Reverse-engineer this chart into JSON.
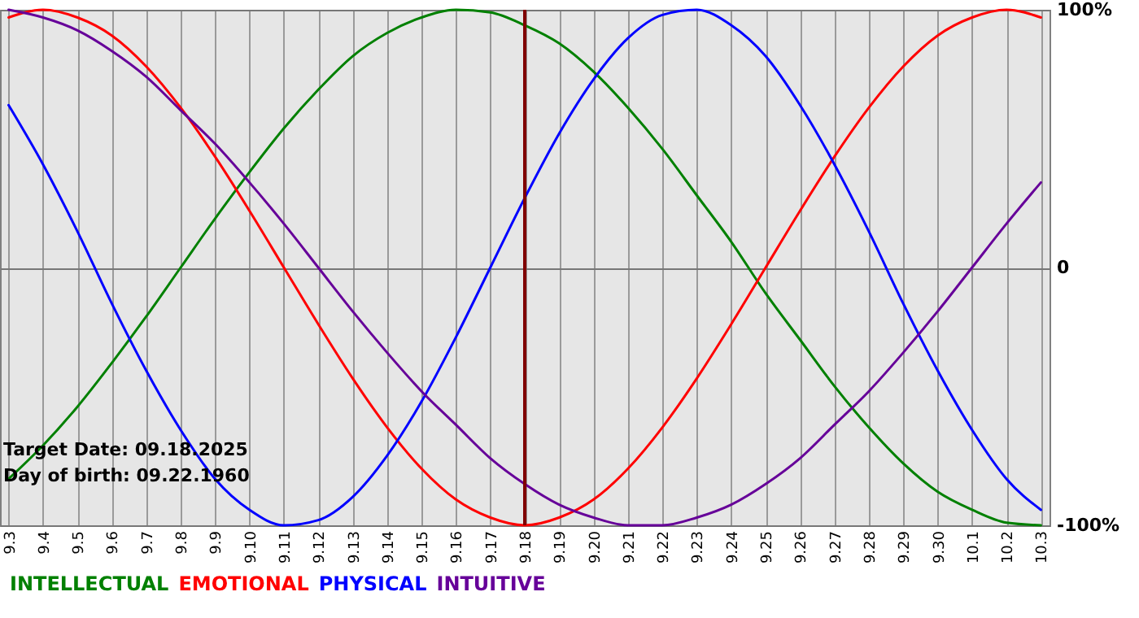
{
  "chart_data": {
    "type": "line",
    "categories": [
      "9.3",
      "9.4",
      "9.5",
      "9.6",
      "9.7",
      "9.8",
      "9.9",
      "9.10",
      "9.11",
      "9.12",
      "9.13",
      "9.14",
      "9.15",
      "9.16",
      "9.17",
      "9.18",
      "9.19",
      "9.20",
      "9.21",
      "9.22",
      "9.23",
      "9.24",
      "9.25",
      "9.26",
      "9.27",
      "9.28",
      "9.29",
      "9.30",
      "10.1",
      "10.2",
      "10.3"
    ],
    "series": [
      {
        "name": "INTELLECTUAL",
        "color": "#008000",
        "values": [
          -82,
          -69,
          -54,
          -37,
          -19,
          0,
          19,
          37,
          54,
          69,
          82,
          91,
          97,
          100,
          99,
          94,
          87,
          76,
          62,
          46,
          28,
          10,
          -10,
          -28,
          -46,
          -62,
          -76,
          -87,
          -94,
          -99,
          -100
        ]
      },
      {
        "name": "EMOTIONAL",
        "color": "#ff0000",
        "values": [
          97,
          100,
          97,
          90,
          78,
          62,
          43,
          22,
          0,
          -22,
          -43,
          -62,
          -78,
          -90,
          -97,
          -100,
          -97,
          -90,
          -78,
          -62,
          -43,
          -22,
          0,
          22,
          43,
          62,
          78,
          90,
          97,
          100,
          97
        ]
      },
      {
        "name": "PHYSICAL",
        "color": "#0000ff",
        "values": [
          63,
          40,
          14,
          -14,
          -40,
          -63,
          -82,
          -94,
          -100,
          -98,
          -89,
          -73,
          -52,
          -27,
          0,
          27,
          52,
          73,
          89,
          98,
          100,
          94,
          82,
          63,
          40,
          14,
          -14,
          -40,
          -63,
          -82,
          -94
        ]
      },
      {
        "name": "INTUITIVE",
        "color": "#660099",
        "values": [
          100,
          97,
          92,
          84,
          74,
          61,
          48,
          33,
          17,
          0,
          -17,
          -33,
          -48,
          -61,
          -74,
          -84,
          -92,
          -97,
          -100,
          -100,
          -97,
          -92,
          -84,
          -74,
          -61,
          -48,
          -33,
          -17,
          0,
          17,
          33
        ]
      }
    ],
    "ylim": [
      -100,
      100
    ],
    "yticks": [
      {
        "value": -100,
        "label": "-100%"
      },
      0,
      {
        "value": 100,
        "label": "100%"
      }
    ],
    "grid": true,
    "legend": "bottom left",
    "ref_lines": [
      {
        "axis": "x",
        "value": "9.18",
        "color": "#800000"
      }
    ],
    "annotations": [
      "Target Date: 09.18.2025",
      "Day of birth: 09.22.1960"
    ]
  }
}
